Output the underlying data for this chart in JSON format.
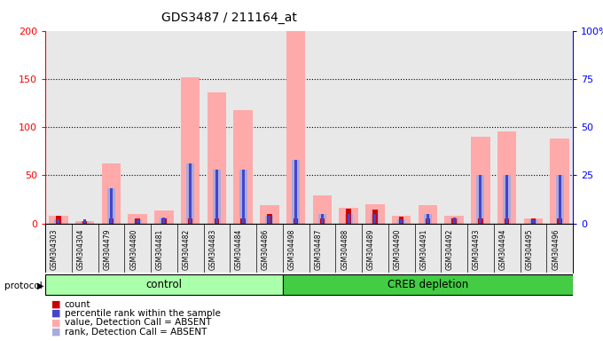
{
  "title": "GDS3487 / 211164_at",
  "samples": [
    "GSM304303",
    "GSM304304",
    "GSM304479",
    "GSM304480",
    "GSM304481",
    "GSM304482",
    "GSM304483",
    "GSM304484",
    "GSM304486",
    "GSM304498",
    "GSM304487",
    "GSM304488",
    "GSM304489",
    "GSM304490",
    "GSM304491",
    "GSM304492",
    "GSM304493",
    "GSM304494",
    "GSM304495",
    "GSM304496"
  ],
  "control_count": 9,
  "groups": [
    "control",
    "CREB depletion"
  ],
  "left_ylim": [
    0,
    200
  ],
  "right_ylim": [
    0,
    100
  ],
  "yticks_left": [
    0,
    50,
    100,
    150,
    200
  ],
  "yticks_right": [
    0,
    25,
    50,
    75,
    100
  ],
  "count_values": [
    8,
    2,
    5,
    5,
    5,
    5,
    5,
    5,
    10,
    5,
    5,
    15,
    14,
    7,
    5,
    5,
    5,
    5,
    5,
    5
  ],
  "rank_values_pct": [
    2,
    2,
    18,
    2,
    3,
    31,
    28,
    28,
    4,
    33,
    5,
    5,
    5,
    2,
    5,
    3,
    25,
    25,
    2,
    25
  ],
  "absent_value_bars": [
    8,
    2,
    62,
    10,
    13,
    152,
    136,
    118,
    19,
    200,
    29,
    16,
    20,
    8,
    19,
    8,
    90,
    95,
    5,
    88
  ],
  "absent_rank_pct": [
    2,
    1,
    18,
    2,
    3,
    31,
    28,
    28,
    4,
    33,
    5,
    5,
    5,
    2,
    5,
    3,
    25,
    25,
    2,
    25
  ],
  "color_count": "#cc0000",
  "color_rank": "#4444cc",
  "color_absent_value": "#ffaaaa",
  "color_absent_rank": "#aaaadd",
  "color_group_control": "#aaffaa",
  "color_group_depletion": "#44cc44",
  "bg_color": "#e8e8e8",
  "legend_items": [
    {
      "label": "count",
      "color": "#cc0000"
    },
    {
      "label": "percentile rank within the sample",
      "color": "#4444cc"
    },
    {
      "label": "value, Detection Call = ABSENT",
      "color": "#ffaaaa"
    },
    {
      "label": "rank, Detection Call = ABSENT",
      "color": "#aaaadd"
    }
  ]
}
